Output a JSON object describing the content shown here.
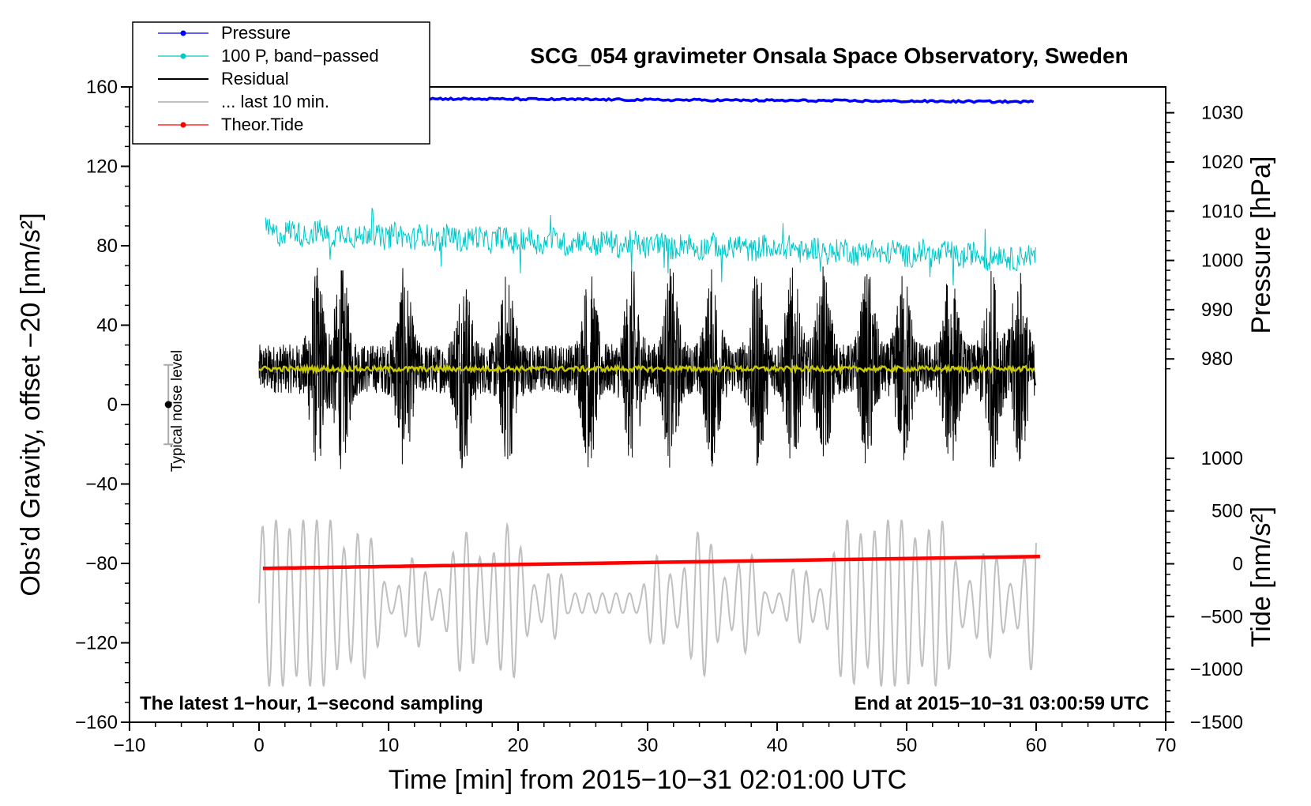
{
  "chart_data": {
    "type": "line",
    "title": "SCG_054 gravimeter Onsala Space Observatory, Sweden",
    "xlabel": "Time [min] from 2015−10−31 02:01:00 UTC",
    "ylabel_left": "Obs’d Gravity, offset −20 [nm/s²]",
    "ylabel_right_pressure": "Pressure [hPa]",
    "ylabel_right_tide": "Tide [nm/s²]",
    "xlim": [
      -10,
      70
    ],
    "ylim_left": [
      -160,
      160
    ],
    "x_ticks": [
      {
        "value": -10,
        "label": "−10"
      },
      {
        "value": 0,
        "label": "0"
      },
      {
        "value": 10,
        "label": "10"
      },
      {
        "value": 20,
        "label": "20"
      },
      {
        "value": 30,
        "label": "30"
      },
      {
        "value": 40,
        "label": "40"
      },
      {
        "value": 50,
        "label": "50"
      },
      {
        "value": 60,
        "label": "60"
      },
      {
        "value": 70,
        "label": "70"
      }
    ],
    "y_ticks_left": [
      {
        "value": -160,
        "label": "−160"
      },
      {
        "value": -120,
        "label": "−120"
      },
      {
        "value": -80,
        "label": "−80"
      },
      {
        "value": -40,
        "label": "−40"
      },
      {
        "value": 0,
        "label": "0"
      },
      {
        "value": 40,
        "label": "40"
      },
      {
        "value": 80,
        "label": "80"
      },
      {
        "value": 120,
        "label": "120"
      },
      {
        "value": 160,
        "label": "160"
      }
    ],
    "pressure_axis": {
      "ticks": [
        {
          "value": 980,
          "label": "980"
        },
        {
          "value": 990,
          "label": "990"
        },
        {
          "value": 1000,
          "label": "1000"
        },
        {
          "value": 1010,
          "label": "1010"
        },
        {
          "value": 1020,
          "label": "1020"
        },
        {
          "value": 1030,
          "label": "1030"
        }
      ],
      "left_equivalent": [
        [
          980,
          23
        ],
        [
          1030,
          147
        ]
      ]
    },
    "tide_axis": {
      "ticks": [
        {
          "value": -1500,
          "label": "−1500"
        },
        {
          "value": -1000,
          "label": "−1000"
        },
        {
          "value": -500,
          "label": "−500"
        },
        {
          "value": 0,
          "label": "0"
        },
        {
          "value": 500,
          "label": "500"
        },
        {
          "value": 1000,
          "label": "1000"
        }
      ],
      "left_equivalent": [
        [
          -1500,
          -160
        ],
        [
          1000,
          -27
        ]
      ]
    },
    "series": [
      {
        "name": "Pressure",
        "color": "#0000ff",
        "t_start": 0,
        "t_end": 60,
        "level_left": 153,
        "start_left": 154.5,
        "end_left": 152.5,
        "noise": 0.5
      },
      {
        "name": "100 P, band−passed",
        "color": "#00c8c8",
        "t_start": 0.5,
        "t_end": 60,
        "center_start_left": 87,
        "center_end_left": 74,
        "amplitude": 6,
        "spike_max_left": 99,
        "spike_min_left": 56
      },
      {
        "name": "Residual",
        "color": "#000000",
        "t_start": 0,
        "t_end": 60,
        "center_left": 18,
        "max_left": 78,
        "min_left": -41,
        "burst_centers_min": [
          4.5,
          6.4,
          11.2,
          15.8,
          19.2,
          25.5,
          28.8,
          31.8,
          35.0,
          38.5,
          41.2,
          43.6,
          47.0,
          49.8,
          53.4,
          56.6,
          58.7
        ]
      },
      {
        "name": "... last 10 min.",
        "color": "#c0c0c0",
        "t_start": 0,
        "t_end": 60,
        "center_left": -100,
        "max_left": -41,
        "min_left": -142
      },
      {
        "name": "Theor.Tide",
        "color": "#ff0000",
        "t_start": 0.3,
        "t_end": 60.5,
        "start_left": -82.5,
        "end_left": -76.5
      },
      {
        "name": "Smoothed residual",
        "color": "#c8c800",
        "t_start": 0,
        "t_end": 60,
        "level_left": 18
      }
    ],
    "legend": {
      "position": "top-left",
      "entries": [
        {
          "label": "Pressure",
          "color": "#0000ff",
          "marker": true
        },
        {
          "label": "100 P, band−passed",
          "color": "#00c8c8",
          "marker": true
        },
        {
          "label": "Residual",
          "color": "#000000",
          "marker": false
        },
        {
          "label": "... last 10 min.",
          "color": "#c0c0c0",
          "marker": false
        },
        {
          "label": "Theor.Tide",
          "color": "#ff0000",
          "marker": true
        }
      ]
    },
    "annotations": {
      "noise_label": "Typical noise level",
      "noise_bar": {
        "t": -7,
        "center": 0,
        "low": -20,
        "high": 20
      },
      "bottom_left": "The latest 1−hour, 1−second sampling",
      "bottom_right": "End at 2015−10−31 03:00:59 UTC"
    }
  }
}
